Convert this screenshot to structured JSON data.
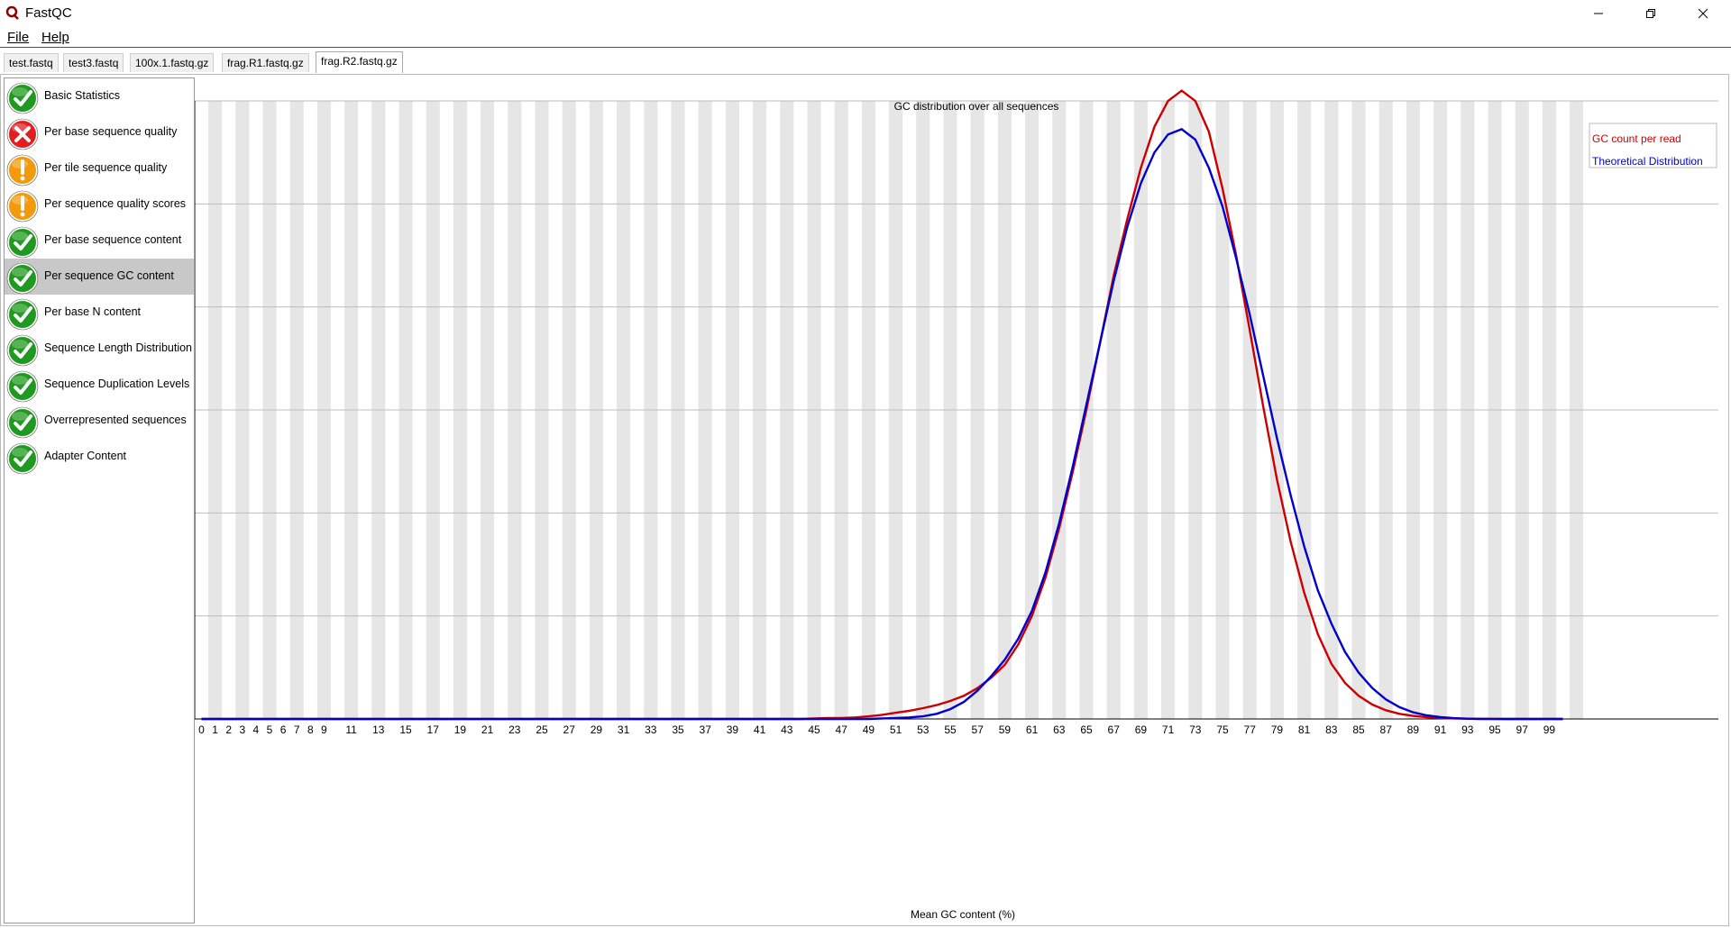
{
  "window": {
    "title": "FastQC"
  },
  "menu": [
    {
      "label": "File"
    },
    {
      "label": "Help"
    }
  ],
  "tabs": [
    {
      "label": "test.fastq",
      "active": false
    },
    {
      "label": "test3.fastq",
      "active": false
    },
    {
      "label": "100x.1.fastq.gz",
      "active": false
    },
    {
      "label": "frag.R1.fastq.gz",
      "active": false
    },
    {
      "label": "frag.R2.fastq.gz",
      "active": true
    }
  ],
  "modules": [
    {
      "label": "Basic Statistics",
      "status": "pass",
      "selected": false
    },
    {
      "label": "Per base sequence quality",
      "status": "fail",
      "selected": false
    },
    {
      "label": "Per tile sequence quality",
      "status": "warn",
      "selected": false
    },
    {
      "label": "Per sequence quality scores",
      "status": "warn",
      "selected": false
    },
    {
      "label": "Per base sequence content",
      "status": "pass",
      "selected": false
    },
    {
      "label": "Per sequence GC content",
      "status": "pass",
      "selected": true
    },
    {
      "label": "Per base N content",
      "status": "pass",
      "selected": false
    },
    {
      "label": "Sequence Length Distribution",
      "status": "pass",
      "selected": false
    },
    {
      "label": "Sequence Duplication Levels",
      "status": "pass",
      "selected": false
    },
    {
      "label": "Overrepresented sequences",
      "status": "pass",
      "selected": false
    },
    {
      "label": "Adapter Content",
      "status": "pass",
      "selected": false
    }
  ],
  "status_icons": {
    "pass": "check-icon",
    "fail": "cross-icon",
    "warn": "exclamation-icon"
  },
  "colors": {
    "pass": "#1e9a1e",
    "fail": "#e02020",
    "warn": "#f39a0c",
    "series_gc": "#cc0000",
    "series_theoretical": "#0000cc",
    "stripe": "#e6e6e6"
  },
  "chart_data": {
    "type": "line",
    "title": "GC distribution over all sequences",
    "xlabel": "Mean GC content (%)",
    "ylabel": "",
    "xlim": [
      0,
      100
    ],
    "ylim": [
      0,
      120000
    ],
    "yticks": [
      0,
      20000,
      40000,
      60000,
      80000,
      100000,
      120000
    ],
    "xtick_labels": [
      "0",
      "1",
      "2",
      "3",
      "4",
      "5",
      "6",
      "7",
      "8",
      "9",
      "11",
      "13",
      "15",
      "17",
      "19",
      "21",
      "23",
      "25",
      "27",
      "29",
      "31",
      "33",
      "35",
      "37",
      "39",
      "41",
      "43",
      "45",
      "47",
      "49",
      "51",
      "53",
      "55",
      "57",
      "59",
      "61",
      "63",
      "65",
      "67",
      "69",
      "71",
      "73",
      "75",
      "77",
      "79",
      "81",
      "83",
      "85",
      "87",
      "89",
      "91",
      "93",
      "95",
      "97",
      "99"
    ],
    "grid": true,
    "legend_position": "top-right",
    "series": [
      {
        "name": "GC count per read",
        "color": "#cc0000",
        "points": [
          [
            0,
            0
          ],
          [
            44,
            0
          ],
          [
            45,
            100
          ],
          [
            46,
            200
          ],
          [
            47,
            200
          ],
          [
            48,
            300
          ],
          [
            49,
            500
          ],
          [
            50,
            800
          ],
          [
            51,
            1200
          ],
          [
            52,
            1600
          ],
          [
            53,
            2100
          ],
          [
            54,
            2700
          ],
          [
            55,
            3500
          ],
          [
            56,
            4500
          ],
          [
            57,
            6000
          ],
          [
            58,
            8000
          ],
          [
            59,
            10500
          ],
          [
            60,
            14500
          ],
          [
            61,
            20000
          ],
          [
            62,
            27500
          ],
          [
            63,
            37000
          ],
          [
            64,
            48000
          ],
          [
            65,
            60000
          ],
          [
            66,
            73000
          ],
          [
            67,
            86000
          ],
          [
            68,
            97000
          ],
          [
            69,
            107000
          ],
          [
            70,
            115000
          ],
          [
            71,
            120000
          ],
          [
            72,
            122000
          ],
          [
            73,
            120000
          ],
          [
            74,
            114000
          ],
          [
            75,
            103000
          ],
          [
            76,
            90000
          ],
          [
            77,
            75500
          ],
          [
            78,
            60500
          ],
          [
            79,
            46500
          ],
          [
            80,
            34500
          ],
          [
            81,
            24500
          ],
          [
            82,
            16500
          ],
          [
            83,
            10700
          ],
          [
            84,
            7000
          ],
          [
            85,
            4500
          ],
          [
            86,
            2800
          ],
          [
            87,
            1700
          ],
          [
            88,
            1000
          ],
          [
            89,
            600
          ],
          [
            90,
            350
          ],
          [
            91,
            200
          ],
          [
            92,
            100
          ],
          [
            93,
            60
          ],
          [
            94,
            30
          ],
          [
            95,
            10
          ],
          [
            96,
            0
          ],
          [
            100,
            0
          ]
        ]
      },
      {
        "name": "Theoretical Distribution",
        "color": "#0000cc",
        "points": [
          [
            0,
            0
          ],
          [
            49,
            0
          ],
          [
            50,
            100
          ],
          [
            51,
            200
          ],
          [
            52,
            300
          ],
          [
            53,
            500
          ],
          [
            54,
            1000
          ],
          [
            55,
            1900
          ],
          [
            56,
            3300
          ],
          [
            57,
            5500
          ],
          [
            58,
            8300
          ],
          [
            59,
            11500
          ],
          [
            60,
            15600
          ],
          [
            61,
            21000
          ],
          [
            62,
            28500
          ],
          [
            63,
            38000
          ],
          [
            64,
            49000
          ],
          [
            65,
            61000
          ],
          [
            66,
            73000
          ],
          [
            67,
            85000
          ],
          [
            68,
            95500
          ],
          [
            69,
            104000
          ],
          [
            70,
            110000
          ],
          [
            71,
            113500
          ],
          [
            72,
            114500
          ],
          [
            73,
            112500
          ],
          [
            74,
            107000
          ],
          [
            75,
            99500
          ],
          [
            76,
            89500
          ],
          [
            77,
            78500
          ],
          [
            78,
            66500
          ],
          [
            79,
            54500
          ],
          [
            80,
            43500
          ],
          [
            81,
            33500
          ],
          [
            82,
            25000
          ],
          [
            83,
            18500
          ],
          [
            84,
            13000
          ],
          [
            85,
            9000
          ],
          [
            86,
            6000
          ],
          [
            87,
            3800
          ],
          [
            88,
            2300
          ],
          [
            89,
            1300
          ],
          [
            90,
            700
          ],
          [
            91,
            350
          ],
          [
            92,
            150
          ],
          [
            93,
            50
          ],
          [
            94,
            0
          ],
          [
            100,
            0
          ]
        ]
      }
    ]
  }
}
